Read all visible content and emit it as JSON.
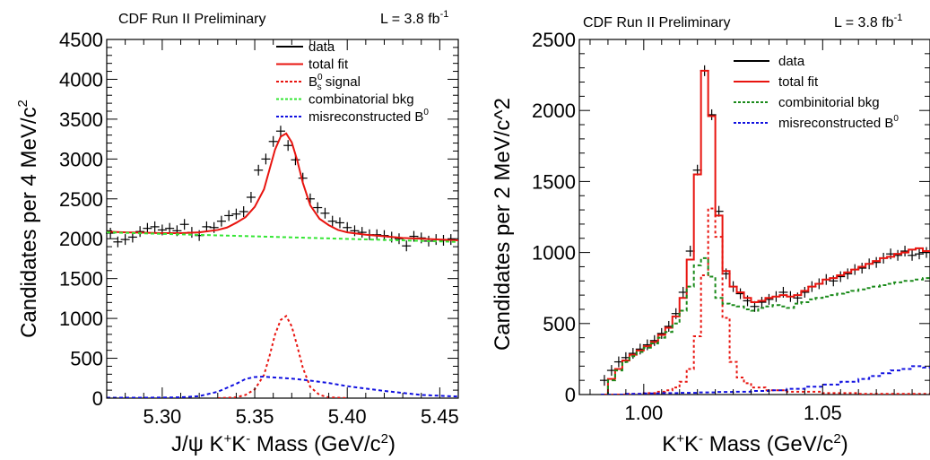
{
  "chart_data": [
    {
      "type": "line",
      "header_left": "CDF Run II Preliminary",
      "header_right": "L = 3.8 fb",
      "header_right_sup": "-1",
      "ylabel": "Candidates per 4 MeV/c",
      "ylabel_sup": "2",
      "xlabel": "J/ψ K",
      "xlabel_parts": [
        "J/ψ K",
        "+",
        "K",
        "-",
        " Mass (GeV/c",
        "2",
        ")"
      ],
      "xlim": [
        5.27,
        5.46
      ],
      "ylim": [
        0,
        4500
      ],
      "xticks": [
        5.3,
        5.35,
        5.4,
        5.45
      ],
      "xtick_labels": [
        "5.30",
        "5.35",
        "5.40",
        "5.45"
      ],
      "yticks": [
        0,
        500,
        1000,
        1500,
        2000,
        2500,
        3000,
        3500,
        4000,
        4500
      ],
      "ytick_labels": [
        "0",
        "500",
        "1000",
        "1500",
        "2000",
        "2500",
        "3000",
        "3500",
        "4000",
        "4500"
      ],
      "legend_position": "top-right",
      "legend": [
        {
          "label": "data",
          "color": "#000000",
          "style": "solid"
        },
        {
          "label": "total fit",
          "color": "#e8140f",
          "style": "solid"
        },
        {
          "label": "B",
          "sub": "s",
          "sup": "0",
          "suffix": " signal",
          "color": "#e8140f",
          "style": "dotted"
        },
        {
          "label": "combinatorial bkg",
          "color": "#33e633",
          "style": "dotted"
        },
        {
          "label": "misreconstructed B",
          "sup": "0",
          "color": "#1010e0",
          "style": "dotted"
        }
      ],
      "series": [
        {
          "name": "data",
          "kind": "points",
          "color": "#000000",
          "x": [
            5.272,
            5.276,
            5.28,
            5.284,
            5.288,
            5.292,
            5.296,
            5.3,
            5.304,
            5.308,
            5.312,
            5.316,
            5.32,
            5.324,
            5.328,
            5.332,
            5.336,
            5.34,
            5.344,
            5.348,
            5.352,
            5.356,
            5.36,
            5.364,
            5.368,
            5.372,
            5.376,
            5.38,
            5.384,
            5.388,
            5.392,
            5.396,
            5.4,
            5.404,
            5.408,
            5.412,
            5.416,
            5.42,
            5.424,
            5.428,
            5.432,
            5.436,
            5.44,
            5.444,
            5.448,
            5.452,
            5.456
          ],
          "y": [
            2070,
            1960,
            1990,
            2020,
            2090,
            2130,
            2150,
            2110,
            2130,
            2100,
            2180,
            2080,
            2040,
            2150,
            2140,
            2220,
            2290,
            2310,
            2340,
            2520,
            2860,
            3000,
            3220,
            3350,
            3170,
            2990,
            2760,
            2500,
            2390,
            2320,
            2220,
            2200,
            2140,
            2100,
            2080,
            2050,
            2050,
            2040,
            2020,
            2000,
            1910,
            2030,
            2010,
            1970,
            1990,
            1980,
            1990
          ]
        },
        {
          "name": "total fit",
          "kind": "line",
          "color": "#e8140f",
          "x": [
            5.27,
            5.28,
            5.29,
            5.3,
            5.31,
            5.32,
            5.33,
            5.335,
            5.34,
            5.345,
            5.35,
            5.355,
            5.358,
            5.361,
            5.364,
            5.367,
            5.37,
            5.373,
            5.376,
            5.38,
            5.385,
            5.39,
            5.395,
            5.4,
            5.41,
            5.42,
            5.43,
            5.44,
            5.45,
            5.46
          ],
          "y": [
            2090,
            2080,
            2075,
            2070,
            2070,
            2080,
            2110,
            2140,
            2200,
            2270,
            2400,
            2620,
            2870,
            3120,
            3280,
            3320,
            3210,
            2980,
            2700,
            2420,
            2250,
            2170,
            2110,
            2080,
            2050,
            2030,
            2010,
            2000,
            1990,
            1980
          ]
        },
        {
          "name": "signal",
          "kind": "line",
          "color": "#e8140f",
          "dash": "3,3",
          "x": [
            5.33,
            5.34,
            5.345,
            5.35,
            5.355,
            5.358,
            5.361,
            5.364,
            5.367,
            5.37,
            5.373,
            5.376,
            5.38,
            5.385,
            5.39,
            5.4
          ],
          "y": [
            0,
            10,
            40,
            110,
            290,
            530,
            800,
            980,
            1030,
            900,
            650,
            380,
            140,
            40,
            10,
            0
          ]
        },
        {
          "name": "combinatorial bkg",
          "kind": "line",
          "color": "#33e633",
          "dash": "4,3",
          "x": [
            5.27,
            5.46
          ],
          "y": [
            2080,
            1960
          ]
        },
        {
          "name": "misreconstructed",
          "kind": "line",
          "color": "#1010e0",
          "dash": "4,3",
          "x": [
            5.27,
            5.29,
            5.31,
            5.32,
            5.33,
            5.34,
            5.345,
            5.35,
            5.355,
            5.36,
            5.37,
            5.38,
            5.39,
            5.4,
            5.42,
            5.44,
            5.46
          ],
          "y": [
            5,
            5,
            10,
            25,
            80,
            180,
            240,
            265,
            270,
            260,
            245,
            220,
            190,
            150,
            90,
            40,
            20
          ]
        }
      ]
    },
    {
      "type": "line",
      "header_left": "CDF Run II Preliminary",
      "header_right": "L =  3.8 fb",
      "header_right_sup": "-1",
      "ylabel": "Candidates per 2 MeV/c^2",
      "xlabel_parts": [
        "K",
        "+",
        "K",
        "-",
        " Mass (GeV/c",
        "2",
        ")"
      ],
      "xlim": [
        0.982,
        1.08
      ],
      "ylim": [
        0,
        2500
      ],
      "xticks": [
        1.0,
        1.05
      ],
      "xtick_labels": [
        "1.00",
        "1.05"
      ],
      "yticks": [
        0,
        500,
        1000,
        1500,
        2000,
        2500
      ],
      "ytick_labels": [
        "0",
        "500",
        "1000",
        "1500",
        "2000",
        "2500"
      ],
      "legend_position": "top-right",
      "legend": [
        {
          "label": "data",
          "color": "#000000",
          "style": "solid"
        },
        {
          "label": "total fit",
          "color": "#e8140f",
          "style": "solid"
        },
        {
          "label": "combinitorial bkg",
          "color": "#1a8a1a",
          "style": "dotted"
        },
        {
          "label": "misreconstructed B",
          "sup": "0",
          "color": "#1010e0",
          "style": "dotted"
        }
      ],
      "series": [
        {
          "name": "data",
          "kind": "points",
          "color": "#000000",
          "x": [
            0.989,
            0.991,
            0.993,
            0.995,
            0.997,
            0.999,
            1.001,
            1.003,
            1.005,
            1.007,
            1.009,
            1.011,
            1.013,
            1.015,
            1.017,
            1.019,
            1.021,
            1.023,
            1.025,
            1.027,
            1.029,
            1.031,
            1.033,
            1.035,
            1.037,
            1.039,
            1.041,
            1.043,
            1.045,
            1.047,
            1.049,
            1.051,
            1.053,
            1.055,
            1.057,
            1.059,
            1.061,
            1.063,
            1.065,
            1.067,
            1.069,
            1.071,
            1.073,
            1.075,
            1.077,
            1.079
          ],
          "y": [
            100,
            170,
            230,
            260,
            290,
            320,
            350,
            380,
            430,
            480,
            570,
            720,
            1010,
            1580,
            2280,
            1970,
            1290,
            850,
            760,
            710,
            660,
            620,
            650,
            670,
            690,
            720,
            690,
            680,
            720,
            760,
            780,
            810,
            800,
            830,
            850,
            880,
            890,
            920,
            930,
            960,
            990,
            980,
            1010,
            980,
            990,
            1000
          ]
        },
        {
          "name": "total fit",
          "kind": "step",
          "color": "#e8140f",
          "x": [
            0.988,
            0.99,
            0.992,
            0.994,
            0.996,
            0.998,
            1.0,
            1.002,
            1.004,
            1.006,
            1.008,
            1.01,
            1.012,
            1.014,
            1.016,
            1.018,
            1.02,
            1.022,
            1.024,
            1.026,
            1.028,
            1.03,
            1.032,
            1.034,
            1.036,
            1.038,
            1.04,
            1.042,
            1.044,
            1.046,
            1.048,
            1.05,
            1.052,
            1.054,
            1.056,
            1.058,
            1.06,
            1.062,
            1.064,
            1.066,
            1.068,
            1.07,
            1.072,
            1.074,
            1.076,
            1.078,
            1.08
          ],
          "y": [
            0,
            110,
            180,
            240,
            280,
            310,
            340,
            370,
            420,
            470,
            550,
            680,
            950,
            1550,
            2280,
            1960,
            1260,
            870,
            760,
            720,
            680,
            650,
            660,
            680,
            690,
            700,
            690,
            700,
            730,
            760,
            780,
            810,
            820,
            840,
            860,
            880,
            900,
            920,
            940,
            960,
            970,
            990,
            1000,
            1020,
            1030,
            1010,
            1000
          ]
        },
        {
          "name": "signal",
          "kind": "step",
          "color": "#e8140f",
          "dash": "3,3",
          "x": [
            0.988,
            0.996,
            1.0,
            1.004,
            1.006,
            1.008,
            1.01,
            1.012,
            1.014,
            1.016,
            1.018,
            1.02,
            1.022,
            1.024,
            1.026,
            1.028,
            1.03,
            1.034,
            1.04,
            1.05,
            1.06,
            1.08
          ],
          "y": [
            0,
            5,
            10,
            20,
            30,
            50,
            90,
            180,
            410,
            840,
            1310,
            1110,
            540,
            230,
            120,
            80,
            50,
            30,
            20,
            10,
            5,
            0
          ]
        },
        {
          "name": "combinatorial bkg",
          "kind": "step",
          "color": "#1a8a1a",
          "dash": "4,3",
          "x": [
            0.988,
            0.99,
            0.992,
            0.994,
            0.996,
            0.998,
            1.0,
            1.002,
            1.004,
            1.006,
            1.008,
            1.01,
            1.012,
            1.014,
            1.016,
            1.018,
            1.02,
            1.022,
            1.024,
            1.026,
            1.028,
            1.03,
            1.032,
            1.034,
            1.036,
            1.038,
            1.04,
            1.042,
            1.044,
            1.046,
            1.048,
            1.05,
            1.052,
            1.054,
            1.056,
            1.058,
            1.06,
            1.062,
            1.064,
            1.066,
            1.068,
            1.07,
            1.072,
            1.074,
            1.076,
            1.078,
            1.08
          ],
          "y": [
            0,
            100,
            170,
            230,
            270,
            300,
            330,
            360,
            400,
            440,
            500,
            590,
            760,
            910,
            960,
            830,
            680,
            640,
            630,
            620,
            600,
            590,
            610,
            620,
            630,
            620,
            610,
            640,
            650,
            670,
            680,
            690,
            700,
            710,
            720,
            730,
            740,
            750,
            760,
            770,
            780,
            790,
            800,
            800,
            810,
            820,
            820
          ]
        },
        {
          "name": "misreconstructed",
          "kind": "step",
          "color": "#1010e0",
          "dash": "4,3",
          "x": [
            0.988,
            0.995,
            1.0,
            1.005,
            1.01,
            1.015,
            1.02,
            1.025,
            1.03,
            1.035,
            1.04,
            1.045,
            1.05,
            1.055,
            1.06,
            1.063,
            1.066,
            1.069,
            1.072,
            1.075,
            1.078,
            1.08
          ],
          "y": [
            0,
            5,
            8,
            10,
            12,
            15,
            18,
            20,
            25,
            30,
            40,
            55,
            70,
            90,
            110,
            130,
            150,
            170,
            180,
            200,
            190,
            185
          ]
        }
      ]
    }
  ]
}
